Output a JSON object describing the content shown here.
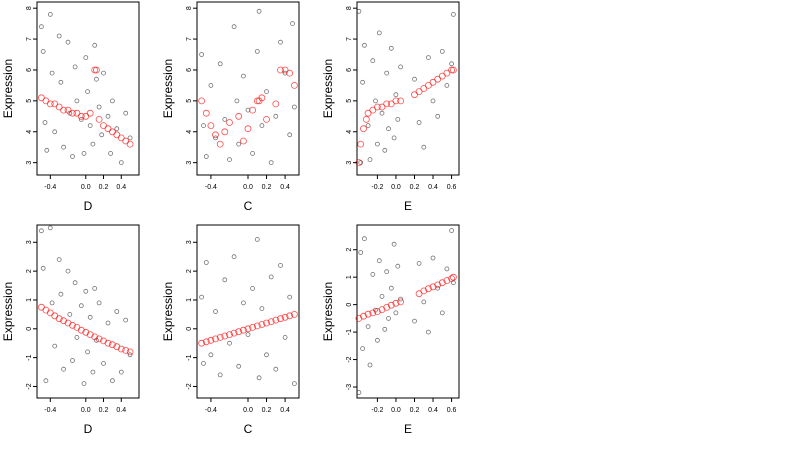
{
  "chart_data": [
    {
      "type": "scatter",
      "xlabel": "D",
      "ylabel": "Expression",
      "xlim": [
        -0.55,
        0.6
      ],
      "ylim": [
        2.6,
        8.2
      ],
      "xticks": [
        -0.4,
        0.0,
        0.2,
        0.4
      ],
      "xtick_labels": [
        "-0.4",
        "0.0",
        "0.2",
        "0.4"
      ],
      "yticks": [
        3,
        4,
        5,
        6,
        7,
        8
      ],
      "ytick_labels": [
        "3",
        "4",
        "5",
        "6",
        "7",
        "8"
      ],
      "series": [
        {
          "color": "#000000",
          "x": [
            -0.5,
            -0.48,
            -0.46,
            -0.44,
            -0.4,
            -0.38,
            -0.35,
            -0.3,
            -0.28,
            -0.25,
            -0.2,
            -0.18,
            -0.15,
            -0.12,
            -0.1,
            -0.05,
            -0.02,
            0.0,
            0.02,
            0.05,
            0.08,
            0.1,
            0.12,
            0.15,
            0.18,
            0.2,
            0.25,
            0.28,
            0.3,
            0.35,
            0.4,
            0.45,
            0.5
          ],
          "y": [
            7.4,
            6.6,
            4.3,
            3.4,
            7.8,
            5.9,
            4.0,
            7.1,
            5.6,
            3.5,
            6.9,
            4.6,
            3.2,
            6.1,
            5.0,
            4.4,
            3.3,
            6.4,
            5.3,
            4.2,
            3.6,
            6.8,
            5.7,
            4.8,
            3.9,
            5.9,
            4.5,
            3.3,
            5.0,
            4.1,
            3.0,
            4.6,
            3.8
          ]
        },
        {
          "color": "#ff0000",
          "x": [
            -0.5,
            -0.45,
            -0.4,
            -0.35,
            -0.3,
            -0.25,
            -0.2,
            -0.15,
            -0.1,
            -0.05,
            0.0,
            0.05,
            0.1,
            0.12,
            0.15,
            0.2,
            0.25,
            0.3,
            0.35,
            0.4,
            0.45,
            0.5
          ],
          "y": [
            5.1,
            5.0,
            4.9,
            4.9,
            4.8,
            4.7,
            4.7,
            4.6,
            4.6,
            4.5,
            4.5,
            4.6,
            6.0,
            6.0,
            4.4,
            4.2,
            4.1,
            4.0,
            3.9,
            3.8,
            3.7,
            3.6
          ]
        }
      ]
    },
    {
      "type": "scatter",
      "xlabel": "C",
      "ylabel": "Expression",
      "xlim": [
        -0.55,
        0.55
      ],
      "ylim": [
        2.6,
        8.2
      ],
      "xticks": [
        -0.4,
        0.0,
        0.2,
        0.4
      ],
      "xtick_labels": [
        "-0.4",
        "0.0",
        "0.2",
        "0.4"
      ],
      "yticks": [
        3,
        4,
        5,
        6,
        7,
        8
      ],
      "ytick_labels": [
        "3",
        "4",
        "5",
        "6",
        "7",
        "8"
      ],
      "series": [
        {
          "color": "#000000",
          "x": [
            -0.5,
            -0.48,
            -0.45,
            -0.4,
            -0.35,
            -0.3,
            -0.25,
            -0.2,
            -0.15,
            -0.12,
            -0.1,
            -0.05,
            0.0,
            0.05,
            0.1,
            0.12,
            0.15,
            0.2,
            0.25,
            0.3,
            0.35,
            0.4,
            0.45,
            0.48,
            0.5
          ],
          "y": [
            6.5,
            4.2,
            3.2,
            5.5,
            3.8,
            6.2,
            4.4,
            3.1,
            7.4,
            5.0,
            3.6,
            5.8,
            4.7,
            3.3,
            6.6,
            7.9,
            4.2,
            5.3,
            3.0,
            4.5,
            6.9,
            5.9,
            3.9,
            7.5,
            4.8
          ]
        },
        {
          "color": "#ff0000",
          "x": [
            -0.5,
            -0.45,
            -0.4,
            -0.35,
            -0.3,
            -0.25,
            -0.2,
            -0.1,
            -0.05,
            0.0,
            0.05,
            0.1,
            0.12,
            0.15,
            0.2,
            0.3,
            0.35,
            0.4,
            0.45,
            0.5
          ],
          "y": [
            5.0,
            4.6,
            4.2,
            3.9,
            3.6,
            4.0,
            4.3,
            4.5,
            3.7,
            4.1,
            4.7,
            5.0,
            5.0,
            5.1,
            4.4,
            4.9,
            6.0,
            6.0,
            5.9,
            5.5
          ]
        }
      ]
    },
    {
      "type": "scatter",
      "xlabel": "E",
      "ylabel": "Expression",
      "xlim": [
        -0.42,
        0.68
      ],
      "ylim": [
        2.6,
        8.2
      ],
      "xticks": [
        -0.2,
        0.0,
        0.2,
        0.4,
        0.6
      ],
      "xtick_labels": [
        "-0.2",
        "0.0",
        "0.2",
        "0.4",
        "0.6"
      ],
      "yticks": [
        3,
        4,
        5,
        6,
        7,
        8
      ],
      "ytick_labels": [
        "3",
        "4",
        "5",
        "6",
        "7",
        "8"
      ],
      "series": [
        {
          "color": "#000000",
          "x": [
            -0.4,
            -0.38,
            -0.36,
            -0.34,
            -0.3,
            -0.28,
            -0.25,
            -0.22,
            -0.2,
            -0.18,
            -0.15,
            -0.12,
            -0.1,
            -0.08,
            -0.05,
            -0.02,
            0.0,
            0.02,
            0.05,
            0.2,
            0.25,
            0.3,
            0.35,
            0.4,
            0.45,
            0.5,
            0.55,
            0.6,
            0.62
          ],
          "y": [
            7.9,
            3.0,
            5.6,
            6.8,
            4.2,
            3.1,
            6.3,
            5.0,
            3.6,
            7.2,
            4.6,
            3.4,
            5.9,
            4.1,
            6.7,
            3.8,
            5.2,
            4.4,
            6.1,
            5.7,
            4.3,
            3.5,
            6.4,
            5.0,
            4.5,
            6.6,
            5.5,
            6.2,
            7.8
          ]
        },
        {
          "color": "#ff0000",
          "x": [
            -0.4,
            -0.38,
            -0.35,
            -0.32,
            -0.3,
            -0.25,
            -0.2,
            -0.15,
            -0.1,
            -0.05,
            0.0,
            0.05,
            0.2,
            0.25,
            0.3,
            0.35,
            0.4,
            0.45,
            0.5,
            0.55,
            0.6,
            0.62
          ],
          "y": [
            3.0,
            3.6,
            4.1,
            4.4,
            4.6,
            4.7,
            4.8,
            4.8,
            4.9,
            4.9,
            5.0,
            5.0,
            5.2,
            5.3,
            5.4,
            5.5,
            5.6,
            5.7,
            5.8,
            5.9,
            6.0,
            6.0
          ]
        }
      ]
    },
    {
      "type": "scatter",
      "xlabel": "D",
      "ylabel": "Expression",
      "xlim": [
        -0.55,
        0.6
      ],
      "ylim": [
        -2.4,
        3.6
      ],
      "xticks": [
        -0.4,
        0.0,
        0.2,
        0.4
      ],
      "xtick_labels": [
        "-0.4",
        "0.0",
        "0.2",
        "0.4"
      ],
      "yticks": [
        -2,
        -1,
        0,
        1,
        2,
        3
      ],
      "ytick_labels": [
        "-2",
        "-1",
        "0",
        "1",
        "2",
        "3"
      ],
      "series": [
        {
          "color": "#000000",
          "x": [
            -0.5,
            -0.48,
            -0.45,
            -0.4,
            -0.38,
            -0.35,
            -0.3,
            -0.28,
            -0.25,
            -0.2,
            -0.18,
            -0.15,
            -0.12,
            -0.1,
            -0.05,
            -0.02,
            0.0,
            0.02,
            0.05,
            0.08,
            0.1,
            0.12,
            0.15,
            0.2,
            0.25,
            0.3,
            0.35,
            0.4,
            0.45,
            0.5
          ],
          "y": [
            3.4,
            2.1,
            -1.8,
            3.5,
            0.9,
            -0.6,
            2.4,
            1.2,
            -1.4,
            2.0,
            0.5,
            -1.1,
            1.6,
            -0.3,
            0.8,
            -1.9,
            1.3,
            -0.8,
            0.4,
            -1.5,
            1.4,
            -0.4,
            0.9,
            -1.2,
            0.2,
            -1.8,
            0.6,
            -1.5,
            0.3,
            -0.9
          ]
        },
        {
          "color": "#ff0000",
          "x": [
            -0.5,
            -0.45,
            -0.4,
            -0.35,
            -0.3,
            -0.25,
            -0.2,
            -0.15,
            -0.1,
            -0.05,
            0.0,
            0.05,
            0.1,
            0.15,
            0.2,
            0.25,
            0.3,
            0.35,
            0.4,
            0.45,
            0.5
          ],
          "y": [
            0.75,
            0.65,
            0.55,
            0.45,
            0.35,
            0.28,
            0.2,
            0.12,
            0.05,
            -0.05,
            -0.12,
            -0.2,
            -0.28,
            -0.35,
            -0.42,
            -0.5,
            -0.55,
            -0.62,
            -0.7,
            -0.75,
            -0.8
          ]
        }
      ]
    },
    {
      "type": "scatter",
      "xlabel": "C",
      "ylabel": "Expression",
      "xlim": [
        -0.55,
        0.55
      ],
      "ylim": [
        -2.4,
        3.6
      ],
      "xticks": [
        -0.4,
        0.0,
        0.2,
        0.4
      ],
      "xtick_labels": [
        "-0.4",
        "0.0",
        "0.2",
        "0.4"
      ],
      "yticks": [
        -2,
        -1,
        0,
        1,
        2,
        3
      ],
      "ytick_labels": [
        "-2",
        "-1",
        "0",
        "1",
        "2",
        "3"
      ],
      "series": [
        {
          "color": "#000000",
          "x": [
            -0.5,
            -0.48,
            -0.45,
            -0.4,
            -0.35,
            -0.3,
            -0.25,
            -0.2,
            -0.15,
            -0.1,
            -0.05,
            0.0,
            0.05,
            0.1,
            0.12,
            0.15,
            0.2,
            0.25,
            0.3,
            0.35,
            0.4,
            0.45,
            0.5
          ],
          "y": [
            1.1,
            -1.2,
            2.3,
            -0.9,
            0.6,
            -1.6,
            1.7,
            -0.5,
            2.5,
            -1.3,
            0.9,
            -0.2,
            1.4,
            3.1,
            -1.7,
            0.7,
            -0.9,
            1.8,
            -1.4,
            2.2,
            -0.3,
            1.1,
            -1.9
          ]
        },
        {
          "color": "#ff0000",
          "x": [
            -0.5,
            -0.45,
            -0.4,
            -0.35,
            -0.3,
            -0.25,
            -0.2,
            -0.15,
            -0.1,
            -0.05,
            0.0,
            0.05,
            0.1,
            0.15,
            0.2,
            0.25,
            0.3,
            0.35,
            0.4,
            0.45,
            0.5
          ],
          "y": [
            -0.5,
            -0.45,
            -0.4,
            -0.35,
            -0.3,
            -0.25,
            -0.2,
            -0.15,
            -0.1,
            -0.05,
            0.0,
            0.05,
            0.1,
            0.15,
            0.2,
            0.25,
            0.3,
            0.35,
            0.4,
            0.45,
            0.5
          ]
        }
      ]
    },
    {
      "type": "scatter",
      "xlabel": "E",
      "ylabel": "Expression",
      "xlim": [
        -0.42,
        0.68
      ],
      "ylim": [
        -3.4,
        2.9
      ],
      "xticks": [
        -0.2,
        0.0,
        0.2,
        0.4,
        0.6
      ],
      "xtick_labels": [
        "-0.2",
        "0.0",
        "0.2",
        "0.4",
        "0.6"
      ],
      "yticks": [
        -3,
        -2,
        -1,
        0,
        1,
        2
      ],
      "ytick_labels": [
        "-3",
        "-2",
        "-1",
        "0",
        "1",
        "2"
      ],
      "series": [
        {
          "color": "#000000",
          "x": [
            -0.4,
            -0.38,
            -0.36,
            -0.34,
            -0.3,
            -0.28,
            -0.25,
            -0.22,
            -0.2,
            -0.18,
            -0.15,
            -0.12,
            -0.1,
            -0.08,
            -0.05,
            -0.02,
            0.0,
            0.02,
            0.05,
            0.2,
            0.25,
            0.3,
            0.35,
            0.4,
            0.45,
            0.5,
            0.55,
            0.6,
            0.62
          ],
          "y": [
            -3.2,
            1.9,
            -1.6,
            2.4,
            -0.8,
            -2.2,
            1.1,
            -0.2,
            -1.3,
            1.6,
            0.3,
            -0.9,
            1.2,
            -0.5,
            0.6,
            2.2,
            -0.3,
            1.4,
            0.2,
            -0.6,
            1.5,
            0.1,
            -1.0,
            1.7,
            0.6,
            -0.3,
            1.3,
            2.7,
            0.8
          ]
        },
        {
          "color": "#ff0000",
          "x": [
            -0.4,
            -0.35,
            -0.3,
            -0.25,
            -0.2,
            -0.15,
            -0.1,
            -0.05,
            0.0,
            0.05,
            0.25,
            0.3,
            0.35,
            0.4,
            0.45,
            0.5,
            0.55,
            0.6,
            0.62
          ],
          "y": [
            -0.5,
            -0.42,
            -0.35,
            -0.3,
            -0.25,
            -0.18,
            -0.1,
            -0.02,
            0.05,
            0.1,
            0.4,
            0.5,
            0.58,
            0.65,
            0.72,
            0.8,
            0.88,
            0.95,
            1.0
          ]
        }
      ]
    }
  ]
}
